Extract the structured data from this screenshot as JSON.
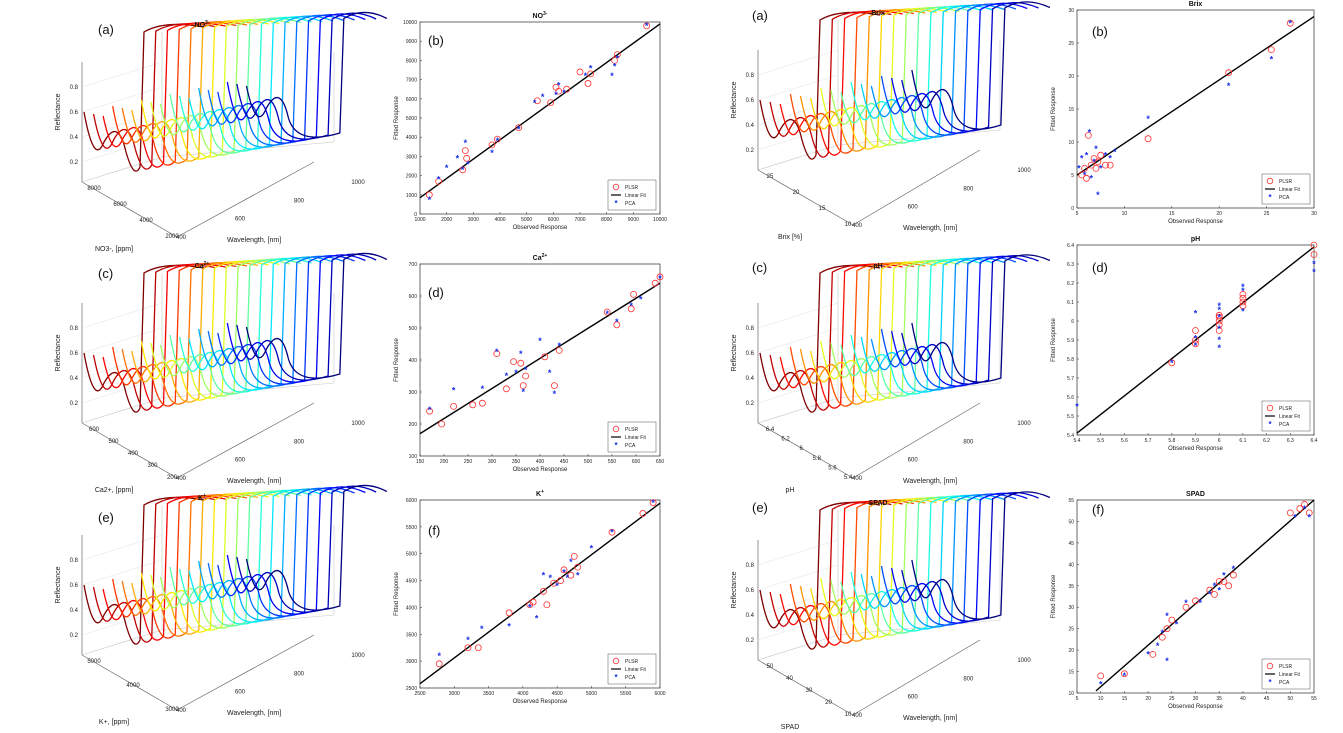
{
  "figure": {
    "panels_count": 12
  },
  "chart_data": [
    {
      "id": "no3-3d",
      "type": "line3d",
      "panel_label": "(a)",
      "title": "NO3-",
      "zlabel": "Reflectance",
      "ylabel": "NO3-, [ppm]",
      "xlabel": "Wavelength, [nm]",
      "yticks": [
        "8000",
        "6000",
        "4000",
        "2000"
      ],
      "xticks": [
        "400",
        "600",
        "800",
        "1000"
      ],
      "zticks": [
        "0.2",
        "0.4",
        "0.6",
        "0.8"
      ],
      "n_curves": 18,
      "colormap": "jet"
    },
    {
      "id": "no3-scatter",
      "type": "scatter",
      "panel_label": "(b)",
      "title": "NO3-",
      "xlabel": "Observed Response",
      "ylabel": "Fitted Response",
      "xlim": [
        1000,
        10000
      ],
      "ylim": [
        0,
        10000
      ],
      "xticks": [
        "1000",
        "2000",
        "3000",
        "4000",
        "5000",
        "6000",
        "7000",
        "8000",
        "9000",
        "10000"
      ],
      "yticks": [
        "0",
        "1000",
        "2000",
        "3000",
        "4000",
        "5000",
        "6000",
        "7000",
        "8000",
        "9000",
        "10000"
      ],
      "fit": [
        [
          1000,
          850
        ],
        [
          10000,
          9900
        ]
      ],
      "legend": {
        "plsr": "PLSR",
        "fit": "Linear Fit",
        "pca": "PCA"
      },
      "plsr": [
        [
          1350,
          1000
        ],
        [
          1700,
          1700
        ],
        [
          2600,
          2300
        ],
        [
          2700,
          3300
        ],
        [
          2750,
          2900
        ],
        [
          3700,
          3600
        ],
        [
          3900,
          3900
        ],
        [
          4700,
          4500
        ],
        [
          5400,
          5900
        ],
        [
          5900,
          5800
        ],
        [
          6100,
          6600
        ],
        [
          6200,
          6400
        ],
        [
          6500,
          6500
        ],
        [
          7000,
          7400
        ],
        [
          7300,
          6800
        ],
        [
          7400,
          7300
        ],
        [
          8300,
          8000
        ],
        [
          8400,
          8300
        ],
        [
          9500,
          9800
        ]
      ],
      "pca": [
        [
          1350,
          750
        ],
        [
          1700,
          1800
        ],
        [
          2000,
          2400
        ],
        [
          2400,
          2900
        ],
        [
          2600,
          2300
        ],
        [
          2700,
          3700
        ],
        [
          2800,
          2600
        ],
        [
          3700,
          3200
        ],
        [
          3900,
          3800
        ],
        [
          4700,
          4400
        ],
        [
          5300,
          5800
        ],
        [
          5600,
          6100
        ],
        [
          6100,
          6200
        ],
        [
          6200,
          6700
        ],
        [
          6400,
          6300
        ],
        [
          7200,
          7200
        ],
        [
          7400,
          7600
        ],
        [
          8200,
          7200
        ],
        [
          8300,
          7700
        ],
        [
          8400,
          8100
        ],
        [
          9500,
          9800
        ]
      ]
    },
    {
      "id": "brix-3d",
      "type": "line3d",
      "panel_label": "(a)",
      "title": "Brix",
      "zlabel": "Reflectance",
      "ylabel": "Brix [%]",
      "xlabel": "Wavelength, [nm]",
      "yticks": [
        "25",
        "20",
        "15",
        "10"
      ],
      "xticks": [
        "400",
        "600",
        "800",
        "1000"
      ],
      "zticks": [
        "0.2",
        "0.4",
        "0.6",
        "0.8"
      ],
      "n_curves": 16,
      "colormap": "jet"
    },
    {
      "id": "brix-scatter",
      "type": "scatter",
      "panel_label": "(b)",
      "title": "Brix",
      "xlabel": "Observed Response",
      "ylabel": "Fitted Response",
      "xlim": [
        5,
        30
      ],
      "ylim": [
        0,
        30
      ],
      "xticks": [
        "5",
        "10",
        "15",
        "20",
        "25",
        "30"
      ],
      "yticks": [
        "0",
        "5",
        "10",
        "15",
        "20",
        "25",
        "30"
      ],
      "fit": [
        [
          5,
          5
        ],
        [
          30,
          29
        ]
      ],
      "legend": {
        "plsr": "PLSR",
        "fit": "Linear Fit",
        "pca": "PCA"
      },
      "plsr": [
        [
          5.5,
          5
        ],
        [
          5.8,
          6
        ],
        [
          6,
          4.5
        ],
        [
          6.2,
          11
        ],
        [
          6.5,
          6.5
        ],
        [
          6.8,
          7.5
        ],
        [
          7,
          6
        ],
        [
          7.2,
          7
        ],
        [
          7.5,
          8
        ],
        [
          8,
          6.5
        ],
        [
          8.5,
          6.5
        ],
        [
          12.5,
          10.5
        ],
        [
          21,
          20.5
        ],
        [
          25.5,
          24
        ],
        [
          27.5,
          28
        ]
      ],
      "pca": [
        [
          5.2,
          6
        ],
        [
          5.5,
          7.5
        ],
        [
          5.8,
          5
        ],
        [
          6,
          8
        ],
        [
          6.3,
          11.5
        ],
        [
          6.5,
          4.5
        ],
        [
          6.8,
          7
        ],
        [
          7,
          9
        ],
        [
          7.2,
          2
        ],
        [
          7.5,
          6
        ],
        [
          8,
          8
        ],
        [
          8.5,
          7.5
        ],
        [
          9,
          8.5
        ],
        [
          12.5,
          13.5
        ],
        [
          21,
          18.5
        ],
        [
          25.5,
          22.5
        ],
        [
          27.5,
          28
        ]
      ]
    },
    {
      "id": "ca-3d",
      "type": "line3d",
      "panel_label": "(c)",
      "title": "Ca2+",
      "zlabel": "Reflectance",
      "ylabel": "Ca2+, [ppm]",
      "xlabel": "Wavelength, [nm]",
      "yticks": [
        "600",
        "500",
        "400",
        "300",
        "200"
      ],
      "xticks": [
        "400",
        "600",
        "800",
        "1000"
      ],
      "zticks": [
        "0.2",
        "0.4",
        "0.6",
        "0.8"
      ],
      "n_curves": 18,
      "colormap": "jet"
    },
    {
      "id": "ca-scatter",
      "type": "scatter",
      "panel_label": "(d)",
      "title": "Ca2+",
      "xlabel": "Observed Response",
      "ylabel": "Fitted Response",
      "xlim": [
        150,
        650
      ],
      "ylim": [
        100,
        700
      ],
      "xticks": [
        "150",
        "200",
        "250",
        "300",
        "350",
        "400",
        "450",
        "500",
        "550",
        "600",
        "650"
      ],
      "yticks": [
        "100",
        "200",
        "300",
        "400",
        "500",
        "600",
        "700"
      ],
      "fit": [
        [
          150,
          170
        ],
        [
          650,
          640
        ]
      ],
      "legend": {
        "plsr": "PLSR",
        "fit": "Linear Fit",
        "pca": "PCA"
      },
      "plsr": [
        [
          170,
          240
        ],
        [
          195,
          200
        ],
        [
          220,
          255
        ],
        [
          260,
          260
        ],
        [
          280,
          265
        ],
        [
          310,
          420
        ],
        [
          330,
          310
        ],
        [
          345,
          395
        ],
        [
          360,
          390
        ],
        [
          365,
          320
        ],
        [
          370,
          350
        ],
        [
          410,
          410
        ],
        [
          430,
          320
        ],
        [
          440,
          430
        ],
        [
          540,
          550
        ],
        [
          560,
          510
        ],
        [
          590,
          560
        ],
        [
          595,
          605
        ],
        [
          640,
          640
        ],
        [
          650,
          660
        ]
      ],
      "pca": [
        [
          170,
          245
        ],
        [
          220,
          305
        ],
        [
          280,
          310
        ],
        [
          310,
          425
        ],
        [
          330,
          350
        ],
        [
          350,
          360
        ],
        [
          360,
          420
        ],
        [
          365,
          300
        ],
        [
          370,
          370
        ],
        [
          400,
          460
        ],
        [
          420,
          360
        ],
        [
          430,
          295
        ],
        [
          440,
          445
        ],
        [
          540,
          545
        ],
        [
          560,
          520
        ],
        [
          590,
          570
        ],
        [
          610,
          590
        ],
        [
          650,
          655
        ]
      ]
    },
    {
      "id": "ph-3d",
      "type": "line3d",
      "panel_label": "(c)",
      "title": "pH",
      "zlabel": "Reflectance",
      "ylabel": "pH",
      "xlabel": "Wavelength, [nm]",
      "yticks": [
        "6.4",
        "6.2",
        "6",
        "5.8",
        "5.6",
        "5.4"
      ],
      "xticks": [
        "400",
        "600",
        "800",
        "1000"
      ],
      "zticks": [
        "0.2",
        "0.4",
        "0.6",
        "0.8"
      ],
      "n_curves": 16,
      "colormap": "jet"
    },
    {
      "id": "ph-scatter",
      "type": "scatter",
      "panel_label": "(d)",
      "title": "pH",
      "xlabel": "Observed Response",
      "ylabel": "Fitted Response",
      "xlim": [
        5.4,
        6.4
      ],
      "ylim": [
        5.4,
        6.4
      ],
      "xticks": [
        "5.4",
        "5.5",
        "5.6",
        "5.7",
        "5.8",
        "5.9",
        "6",
        "6.1",
        "6.2",
        "6.3",
        "6.4"
      ],
      "yticks": [
        "5.4",
        "5.5",
        "5.6",
        "5.7",
        "5.8",
        "5.9",
        "6",
        "6.1",
        "6.2",
        "6.3",
        "6.4"
      ],
      "fit": [
        [
          5.4,
          5.41
        ],
        [
          6.4,
          6.39
        ]
      ],
      "legend": {
        "plsr": "PLSR",
        "fit": "Linear Fit",
        "pca": "PCA"
      },
      "plsr": [
        [
          5.8,
          5.78
        ],
        [
          5.9,
          5.88
        ],
        [
          5.9,
          5.9
        ],
        [
          5.9,
          5.95
        ],
        [
          6,
          5.95
        ],
        [
          6,
          5.98
        ],
        [
          6,
          6.0
        ],
        [
          6,
          6.02
        ],
        [
          6,
          6.03
        ],
        [
          6.1,
          6.08
        ],
        [
          6.1,
          6.1
        ],
        [
          6.1,
          6.12
        ],
        [
          6.1,
          6.14
        ],
        [
          6.4,
          6.4
        ],
        [
          6.4,
          6.35
        ]
      ],
      "pca": [
        [
          5.4,
          5.55
        ],
        [
          5.8,
          5.78
        ],
        [
          5.9,
          5.87
        ],
        [
          5.9,
          5.91
        ],
        [
          5.9,
          6.04
        ],
        [
          6,
          5.86
        ],
        [
          6,
          5.9
        ],
        [
          6,
          5.96
        ],
        [
          6,
          6.06
        ],
        [
          6,
          6.08
        ],
        [
          6,
          6.02
        ],
        [
          6.1,
          6.05
        ],
        [
          6.1,
          6.16
        ],
        [
          6.1,
          6.18
        ],
        [
          6.4,
          6.3
        ],
        [
          6.4,
          6.26
        ]
      ]
    },
    {
      "id": "k-3d",
      "type": "line3d",
      "panel_label": "(e)",
      "title": "K+",
      "zlabel": "Reflectance",
      "ylabel": "K+, [ppm]",
      "xlabel": "Wavelength, [nm]",
      "yticks": [
        "5000",
        "4000",
        "3000"
      ],
      "xticks": [
        "400",
        "600",
        "800",
        "1000"
      ],
      "zticks": [
        "0.2",
        "0.4",
        "0.6",
        "0.8"
      ],
      "n_curves": 18,
      "colormap": "jet"
    },
    {
      "id": "k-scatter",
      "type": "scatter",
      "panel_label": "(f)",
      "title": "K+",
      "xlabel": "Observed Response",
      "ylabel": "Fitted Response",
      "xlim": [
        2500,
        6000
      ],
      "ylim": [
        2500,
        6000
      ],
      "xticks": [
        "2500",
        "3000",
        "3500",
        "4000",
        "4500",
        "5000",
        "5500",
        "6000"
      ],
      "yticks": [
        "2500",
        "3000",
        "3500",
        "4000",
        "4500",
        "5000",
        "5500",
        "6000"
      ],
      "fit": [
        [
          2500,
          2580
        ],
        [
          6000,
          5940
        ]
      ],
      "legend": {
        "plsr": "PLSR",
        "fit": "Linear Fit",
        "pca": "PCA"
      },
      "plsr": [
        [
          2780,
          2950
        ],
        [
          3200,
          3250
        ],
        [
          3350,
          3250
        ],
        [
          3800,
          3900
        ],
        [
          4100,
          4050
        ],
        [
          4150,
          4100
        ],
        [
          4300,
          4300
        ],
        [
          4350,
          4050
        ],
        [
          4450,
          4450
        ],
        [
          4550,
          4500
        ],
        [
          4600,
          4700
        ],
        [
          4700,
          4600
        ],
        [
          4750,
          4950
        ],
        [
          4800,
          4750
        ],
        [
          5300,
          5400
        ],
        [
          5750,
          5750
        ],
        [
          5900,
          5950
        ]
      ],
      "pca": [
        [
          2780,
          3100
        ],
        [
          3200,
          3400
        ],
        [
          3400,
          3600
        ],
        [
          3800,
          3650
        ],
        [
          4100,
          4000
        ],
        [
          4200,
          3800
        ],
        [
          4300,
          4600
        ],
        [
          4400,
          4550
        ],
        [
          4500,
          4400
        ],
        [
          4600,
          4650
        ],
        [
          4650,
          4550
        ],
        [
          4700,
          4850
        ],
        [
          4800,
          4600
        ],
        [
          5000,
          5100
        ],
        [
          5300,
          5400
        ],
        [
          5900,
          5950
        ]
      ]
    },
    {
      "id": "spad-3d",
      "type": "line3d",
      "panel_label": "(e)",
      "title": "SPAD",
      "zlabel": "Reflectance",
      "ylabel": "SPAD",
      "xlabel": "Wavelength, [nm]",
      "yticks": [
        "50",
        "40",
        "30",
        "20",
        "10"
      ],
      "xticks": [
        "400",
        "600",
        "800",
        "1000"
      ],
      "zticks": [
        "0.2",
        "0.4",
        "0.6",
        "0.8"
      ],
      "n_curves": 16,
      "colormap": "jet"
    },
    {
      "id": "spad-scatter",
      "type": "scatter",
      "panel_label": "(f)",
      "title": "SPAD",
      "xlabel": "Observed Response",
      "ylabel": "Fitted Response",
      "xlim": [
        5,
        55
      ],
      "ylim": [
        10,
        55
      ],
      "xticks": [
        "5",
        "10",
        "15",
        "20",
        "25",
        "30",
        "35",
        "40",
        "45",
        "50",
        "55"
      ],
      "yticks": [
        "10",
        "15",
        "20",
        "25",
        "30",
        "35",
        "40",
        "45",
        "50",
        "55"
      ],
      "fit": [
        [
          9,
          10.5
        ],
        [
          55,
          55
        ]
      ],
      "legend": {
        "plsr": "PLSR",
        "fit": "Linear Fit",
        "pca": "PCA"
      },
      "plsr": [
        [
          10,
          14
        ],
        [
          15,
          14.5
        ],
        [
          21,
          19
        ],
        [
          23,
          23
        ],
        [
          24,
          25
        ],
        [
          25,
          27
        ],
        [
          28,
          30
        ],
        [
          30,
          31.5
        ],
        [
          33,
          34
        ],
        [
          34,
          33
        ],
        [
          35,
          36
        ],
        [
          36,
          36
        ],
        [
          37,
          35
        ],
        [
          38,
          37.5
        ],
        [
          50,
          52
        ],
        [
          52,
          53
        ],
        [
          53,
          54
        ],
        [
          54,
          52
        ]
      ],
      "pca": [
        [
          10,
          12
        ],
        [
          15,
          14
        ],
        [
          20,
          19
        ],
        [
          22,
          21
        ],
        [
          23,
          24
        ],
        [
          24,
          28
        ],
        [
          24,
          17.5
        ],
        [
          26,
          26
        ],
        [
          28,
          31
        ],
        [
          31,
          31
        ],
        [
          33,
          33
        ],
        [
          34,
          35
        ],
        [
          35,
          34
        ],
        [
          36,
          37.5
        ],
        [
          38,
          39
        ],
        [
          51,
          51
        ],
        [
          53,
          53
        ],
        [
          54,
          51
        ]
      ]
    }
  ]
}
